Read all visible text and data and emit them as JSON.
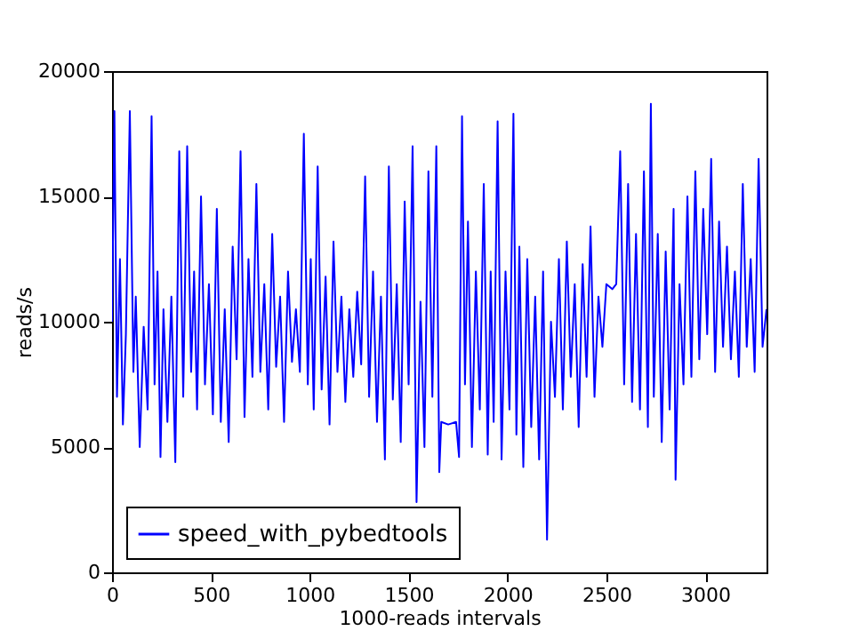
{
  "chart_data": {
    "type": "line",
    "xlabel": "1000-reads intervals",
    "ylabel": "reads/s",
    "x": [
      0,
      12,
      25,
      40,
      55,
      70,
      90,
      108,
      120,
      140,
      160,
      180,
      200,
      215,
      230,
      245,
      260,
      280,
      300,
      320,
      340,
      360,
      380,
      400,
      415,
      430,
      450,
      470,
      490,
      510,
      530,
      550,
      570,
      590,
      610,
      630,
      650,
      670,
      690,
      710,
      730,
      750,
      770,
      790,
      810,
      830,
      850,
      870,
      890,
      910,
      930,
      950,
      970,
      990,
      1005,
      1020,
      1040,
      1060,
      1080,
      1100,
      1120,
      1140,
      1160,
      1180,
      1200,
      1220,
      1240,
      1260,
      1280,
      1300,
      1320,
      1340,
      1360,
      1380,
      1400,
      1420,
      1440,
      1460,
      1480,
      1500,
      1520,
      1540,
      1560,
      1580,
      1600,
      1620,
      1640,
      1655,
      1665,
      1700,
      1740,
      1755,
      1770,
      1785,
      1800,
      1820,
      1840,
      1860,
      1880,
      1900,
      1915,
      1930,
      1950,
      1970,
      1990,
      2010,
      2030,
      2045,
      2060,
      2080,
      2100,
      2120,
      2140,
      2160,
      2180,
      2200,
      2220,
      2240,
      2260,
      2280,
      2300,
      2320,
      2340,
      2360,
      2380,
      2400,
      2420,
      2440,
      2460,
      2480,
      2500,
      2530,
      2550,
      2570,
      2590,
      2610,
      2630,
      2650,
      2670,
      2690,
      2710,
      2725,
      2740,
      2760,
      2780,
      2800,
      2820,
      2840,
      2850,
      2870,
      2890,
      2910,
      2930,
      2950,
      2970,
      2990,
      3010,
      3030,
      3050,
      3070,
      3090,
      3110,
      3130,
      3150,
      3170,
      3190,
      3210,
      3230,
      3250,
      3270,
      3290,
      3310
    ],
    "series": [
      {
        "name": "speed_with_pybedtools",
        "color": "#0000ff",
        "values": [
          10000,
          18400,
          7000,
          12500,
          5900,
          9500,
          18400,
          8000,
          11000,
          5000,
          9800,
          6500,
          18200,
          7500,
          12000,
          4600,
          10500,
          6000,
          11000,
          4400,
          16800,
          7000,
          17000,
          8000,
          12000,
          6500,
          15000,
          7500,
          11500,
          6300,
          14500,
          6000,
          10500,
          5200,
          13000,
          8500,
          16800,
          6200,
          12500,
          7800,
          15500,
          8000,
          11500,
          6500,
          13500,
          8200,
          11000,
          6000,
          12000,
          8400,
          10500,
          8000,
          17500,
          7500,
          12500,
          6500,
          16200,
          7300,
          11800,
          5900,
          13200,
          8000,
          11000,
          6800,
          10500,
          7800,
          11200,
          8300,
          15800,
          7000,
          12000,
          6000,
          11000,
          4500,
          16200,
          6900,
          11500,
          5200,
          14800,
          7500,
          17000,
          2800,
          10800,
          5000,
          16000,
          7000,
          17000,
          4000,
          6000,
          5900,
          6000,
          4600,
          18200,
          7500,
          14000,
          5000,
          12000,
          6500,
          15500,
          4700,
          12000,
          6000,
          18000,
          4500,
          12000,
          6500,
          18300,
          5500,
          13000,
          4200,
          12500,
          5800,
          11000,
          4500,
          12000,
          1300,
          10000,
          7000,
          12500,
          6500,
          13200,
          7800,
          11500,
          5800,
          12300,
          7800,
          13800,
          7000,
          11000,
          9000,
          11500,
          11300,
          11500,
          16800,
          7500,
          15500,
          6800,
          13500,
          6500,
          16000,
          5800,
          18700,
          7000,
          13500,
          5200,
          12800,
          6500,
          14500,
          3700,
          11500,
          7500,
          15000,
          7800,
          16000,
          8500,
          14500,
          9500,
          16500,
          8000,
          14000,
          9000,
          13000,
          8500,
          12000,
          7800,
          15500,
          9000,
          12500,
          8000,
          16500,
          9000,
          10500
        ]
      }
    ],
    "xlim": [
      0,
      3310
    ],
    "ylim": [
      0,
      20000
    ],
    "xticks": [
      0,
      500,
      1000,
      1500,
      2000,
      2500,
      3000
    ],
    "yticks": [
      0,
      5000,
      10000,
      15000,
      20000
    ],
    "grid": false,
    "legend": "bottom left"
  }
}
